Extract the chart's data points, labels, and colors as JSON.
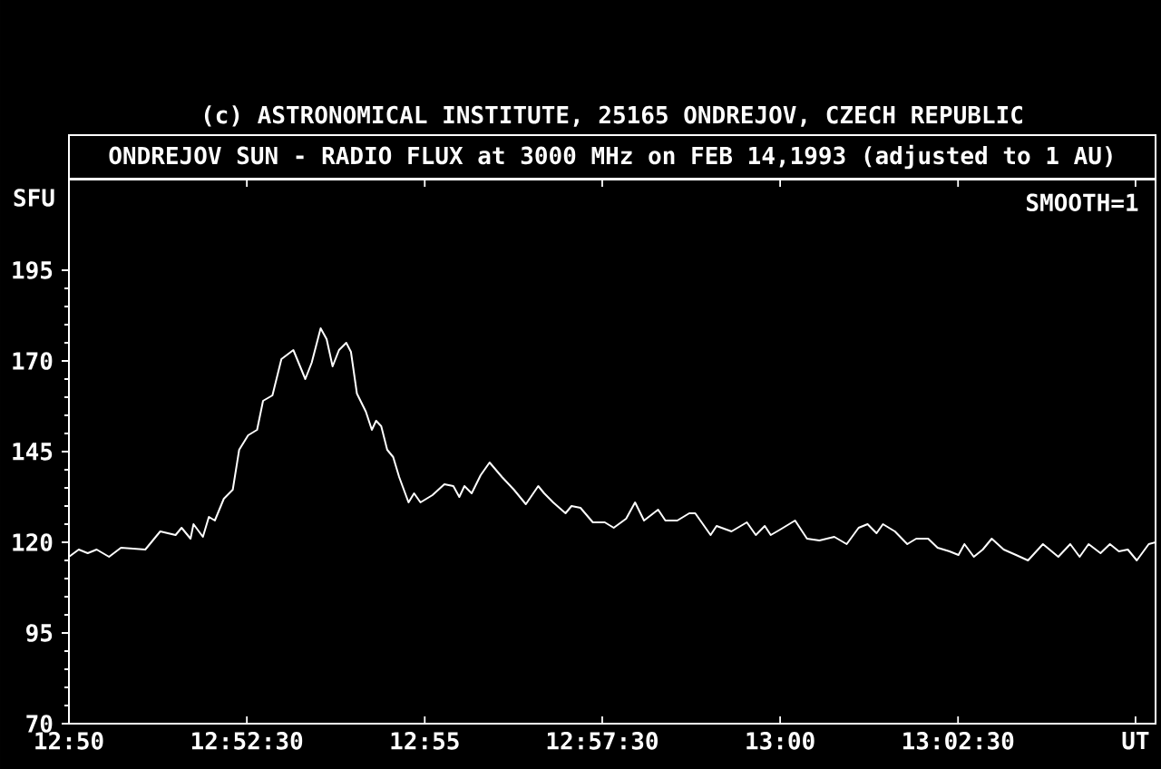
{
  "chart_data": {
    "type": "line",
    "title": "ONDREJOV SUN - RADIO FLUX at 3000 MHz on FEB 14,1993 (adjusted to 1 AU)",
    "ylabel": "SFU",
    "annotations": [
      "(c) ASTRONOMICAL INSTITUTE, 25165 ONDREJOV, CZECH REPUBLIC",
      "SMOOTH=1"
    ],
    "x": [
      12.8333,
      12.8356,
      12.8377,
      12.8398,
      12.8427,
      12.8455,
      12.8512,
      12.8547,
      12.8583,
      12.8597,
      12.8618,
      12.8625,
      12.8647,
      12.8661,
      12.8675,
      12.8696,
      12.8717,
      12.8732,
      12.8753,
      12.8774,
      12.8788,
      12.881,
      12.8831,
      12.8859,
      12.8887,
      12.8902,
      12.8923,
      12.8937,
      12.8951,
      12.8966,
      12.8983,
      12.8994,
      12.9008,
      12.9029,
      12.9043,
      12.9053,
      12.9065,
      12.9079,
      12.9093,
      12.9107,
      12.9129,
      12.9142,
      12.9157,
      12.9185,
      12.9213,
      12.9234,
      12.9248,
      12.926,
      12.9277,
      12.9298,
      12.9319,
      12.9348,
      12.9376,
      12.9404,
      12.9433,
      12.9447,
      12.9468,
      12.9497,
      12.9511,
      12.9532,
      12.9561,
      12.9589,
      12.961,
      12.9639,
      12.966,
      12.9681,
      12.9714,
      12.9731,
      12.9759,
      12.9787,
      12.9801,
      12.9816,
      12.9837,
      12.9851,
      12.9886,
      12.9922,
      12.9943,
      12.9964,
      12.9978,
      13.0,
      13.0035,
      13.0063,
      13.0092,
      13.0127,
      13.0156,
      13.0184,
      13.0205,
      13.0226,
      13.0241,
      13.0269,
      13.0298,
      13.0319,
      13.0347,
      13.0369,
      13.0397,
      13.0418,
      13.0432,
      13.0454,
      13.0475,
      13.0496,
      13.0524,
      13.0553,
      13.0581,
      13.0616,
      13.0652,
      13.068,
      13.0702,
      13.0723,
      13.0751,
      13.0773,
      13.0794,
      13.0815,
      13.0836,
      13.0864,
      13.088
    ],
    "series": [
      {
        "color": "#ffffff",
        "values": [
          116,
          118,
          117,
          118,
          116,
          118.5,
          118,
          123,
          122,
          124,
          121,
          125,
          121.5,
          127,
          126,
          132,
          134.5,
          145.5,
          149.5,
          151,
          159,
          160.5,
          170.5,
          173,
          165,
          169.5,
          179,
          176,
          168.5,
          173,
          175,
          172.5,
          161,
          156,
          151,
          153.5,
          152,
          145.5,
          143.5,
          138,
          131,
          133.5,
          131,
          133,
          136,
          135.5,
          132.5,
          135.5,
          133.5,
          138.5,
          142,
          138,
          134.5,
          130.5,
          135.5,
          133.5,
          131,
          128,
          130,
          129.5,
          125.5,
          125.5,
          124,
          126.5,
          131,
          126,
          129,
          126,
          126,
          128,
          128,
          125.5,
          122,
          124.5,
          123,
          125.5,
          122,
          124.5,
          122,
          123.5,
          126,
          121,
          120.5,
          121.5,
          119.5,
          124,
          125,
          122.5,
          125,
          123,
          119.5,
          121,
          121,
          118.5,
          117.5,
          116.5,
          119.5,
          116,
          118,
          121,
          118,
          116.5,
          115,
          119.5,
          116,
          119.5,
          116,
          119.5,
          117,
          119.5,
          117.5,
          118,
          115,
          119.5,
          120
        ]
      }
    ],
    "xlim": [
      12.8333,
      13.088
    ],
    "ylim": [
      70,
      220
    ],
    "xticks": [
      {
        "value": 12.8333,
        "label": "12:50"
      },
      {
        "value": 12.875,
        "label": "12:52:30"
      },
      {
        "value": 12.9167,
        "label": "12:55"
      },
      {
        "value": 12.9583,
        "label": "12:57:30"
      },
      {
        "value": 13.0,
        "label": "13:00"
      },
      {
        "value": 13.0417,
        "label": "13:02:30"
      },
      {
        "value": 13.0833,
        "label": "UT"
      }
    ],
    "yticks": [
      70,
      95,
      120,
      145,
      170,
      195
    ],
    "line_style": "solid",
    "marker": "none"
  }
}
